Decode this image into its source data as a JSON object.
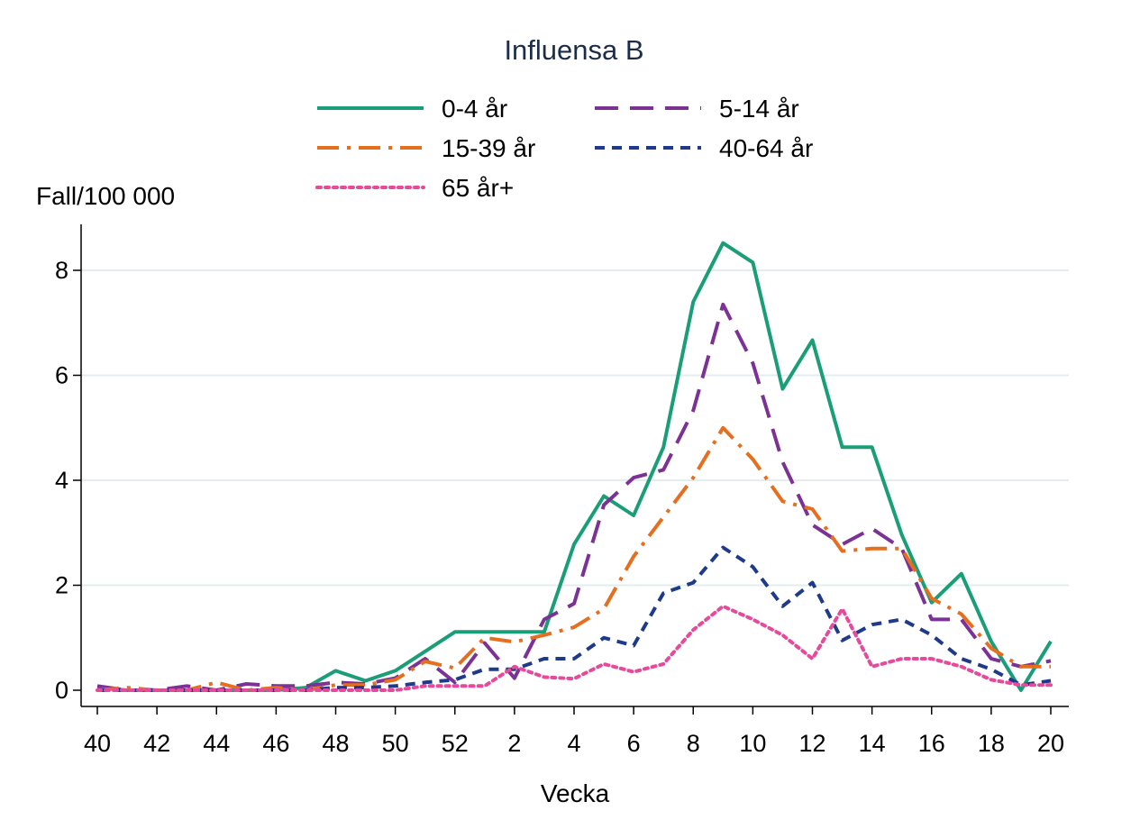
{
  "chart_data": {
    "type": "line",
    "title": "Influensa B",
    "xlabel": "Vecka",
    "ylabel": "Fall/100 000",
    "ylim": [
      0,
      8.8
    ],
    "yticks": [
      0,
      2,
      4,
      6,
      8
    ],
    "grid": true,
    "legend_position": "top",
    "x": [
      40,
      41,
      42,
      43,
      44,
      45,
      46,
      47,
      48,
      49,
      50,
      51,
      52,
      1,
      2,
      3,
      4,
      5,
      6,
      7,
      8,
      9,
      10,
      11,
      12,
      13,
      14,
      15,
      16,
      17,
      18,
      19,
      20
    ],
    "xtick_labels": [
      "40",
      "42",
      "44",
      "46",
      "48",
      "50",
      "52",
      "2",
      "4",
      "6",
      "8",
      "10",
      "12",
      "14",
      "16",
      "18",
      "20"
    ],
    "series": [
      {
        "name": "0-4 år",
        "color": "#1a9e77",
        "dash": "solid",
        "values": [
          0.05,
          0,
          0,
          0,
          0,
          0,
          0,
          0.05,
          0.37,
          0.18,
          0.37,
          0.74,
          1.11,
          1.11,
          1.11,
          1.11,
          2.78,
          3.7,
          3.33,
          4.63,
          7.4,
          8.52,
          8.15,
          5.74,
          6.67,
          4.63,
          4.63,
          2.96,
          1.67,
          2.22,
          0.93,
          0,
          0.93
        ]
      },
      {
        "name": "5-14 år",
        "color": "#7b3294",
        "dash": "longdash",
        "values": [
          0.08,
          0,
          0,
          0.08,
          0,
          0.12,
          0.08,
          0.08,
          0.15,
          0.12,
          0.23,
          0.6,
          0.15,
          0.9,
          0.23,
          1.35,
          1.65,
          3.53,
          4.05,
          4.2,
          5.33,
          7.35,
          6.23,
          4.35,
          3.15,
          2.78,
          3.08,
          2.7,
          1.35,
          1.35,
          0.6,
          0.45,
          0.56
        ]
      },
      {
        "name": "15-39 år",
        "color": "#e66e1f",
        "dash": "dashdot",
        "values": [
          0,
          0.05,
          0,
          0,
          0.15,
          0,
          0.05,
          0,
          0.1,
          0.1,
          0.2,
          0.55,
          0.42,
          1.0,
          0.92,
          1.05,
          1.2,
          1.55,
          2.55,
          3.3,
          4.05,
          5.0,
          4.4,
          3.6,
          3.45,
          2.65,
          2.7,
          2.7,
          1.75,
          1.45,
          0.8,
          0.45,
          0.45
        ]
      },
      {
        "name": "40-64 år",
        "color": "#1f3a8a",
        "dash": "shortdash",
        "values": [
          0,
          0,
          0,
          0,
          0,
          0,
          0,
          0,
          0.05,
          0.05,
          0.08,
          0.15,
          0.2,
          0.4,
          0.4,
          0.6,
          0.6,
          1.0,
          0.85,
          1.85,
          2.05,
          2.72,
          2.35,
          1.6,
          2.05,
          0.95,
          1.25,
          1.35,
          1.05,
          0.6,
          0.4,
          0.1,
          0.18
        ]
      },
      {
        "name": "65 år+",
        "color": "#e7499b",
        "dash": "dotted",
        "values": [
          0,
          0,
          0,
          0,
          0,
          0,
          0,
          0,
          0,
          0,
          0,
          0.08,
          0.08,
          0.08,
          0.45,
          0.25,
          0.22,
          0.5,
          0.35,
          0.5,
          1.15,
          1.6,
          1.35,
          1.05,
          0.6,
          1.55,
          0.45,
          0.6,
          0.6,
          0.45,
          0.2,
          0.1,
          0.1
        ]
      }
    ]
  }
}
